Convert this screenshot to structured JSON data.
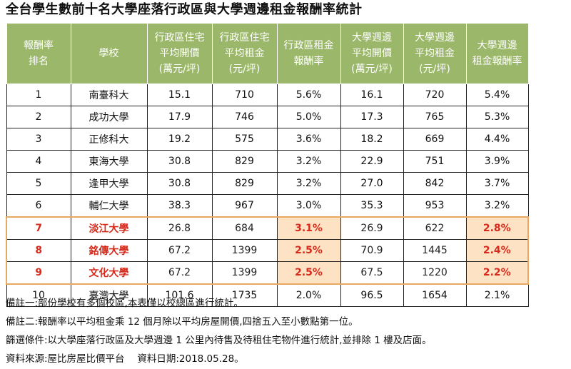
{
  "title": "全台學生數前十名大學座落行政區與大學週邊租金報酬率統計",
  "columns": [
    {
      "lines": [
        "報酬率",
        "排名"
      ]
    },
    {
      "lines": [
        "學校"
      ]
    },
    {
      "lines": [
        "行政區住宅",
        "平均開價",
        "(萬元/坪)"
      ]
    },
    {
      "lines": [
        "行政區住宅",
        "平均租金",
        "(元/坪)"
      ]
    },
    {
      "lines": [
        "行政區租金",
        "報酬率"
      ]
    },
    {
      "lines": [
        "大學週邊",
        "平均開價",
        "(萬元/坪)"
      ]
    },
    {
      "lines": [
        "大學週邊",
        "平均租金",
        "(元/坪)"
      ]
    },
    {
      "lines": [
        "大學週邊",
        "租金報酬率"
      ]
    }
  ],
  "rows": [
    {
      "rank": "1",
      "school": "南臺科大",
      "dist_price": "15.1",
      "dist_rent": "710",
      "dist_yield": "5.6%",
      "uni_price": "16.1",
      "uni_rent": "720",
      "uni_yield": "5.4%",
      "highlight": false
    },
    {
      "rank": "2",
      "school": "成功大學",
      "dist_price": "17.9",
      "dist_rent": "746",
      "dist_yield": "5.0%",
      "uni_price": "17.3",
      "uni_rent": "765",
      "uni_yield": "5.3%",
      "highlight": false
    },
    {
      "rank": "3",
      "school": "正修科大",
      "dist_price": "19.2",
      "dist_rent": "575",
      "dist_yield": "3.6%",
      "uni_price": "18.2",
      "uni_rent": "669",
      "uni_yield": "4.4%",
      "highlight": false
    },
    {
      "rank": "4",
      "school": "東海大學",
      "dist_price": "30.8",
      "dist_rent": "829",
      "dist_yield": "3.2%",
      "uni_price": "22.9",
      "uni_rent": "751",
      "uni_yield": "3.9%",
      "highlight": false
    },
    {
      "rank": "5",
      "school": "逢甲大學",
      "dist_price": "30.8",
      "dist_rent": "829",
      "dist_yield": "3.2%",
      "uni_price": "27.0",
      "uni_rent": "842",
      "uni_yield": "3.7%",
      "highlight": false
    },
    {
      "rank": "6",
      "school": "輔仁大學",
      "dist_price": "38.3",
      "dist_rent": "967",
      "dist_yield": "3.0%",
      "uni_price": "35.3",
      "uni_rent": "953",
      "uni_yield": "3.2%",
      "highlight": false
    },
    {
      "rank": "7",
      "school": "淡江大學",
      "dist_price": "26.8",
      "dist_rent": "684",
      "dist_yield": "3.1%",
      "uni_price": "26.9",
      "uni_rent": "622",
      "uni_yield": "2.8%",
      "highlight": true
    },
    {
      "rank": "8",
      "school": "銘傳大學",
      "dist_price": "67.2",
      "dist_rent": "1399",
      "dist_yield": "2.5%",
      "uni_price": "70.9",
      "uni_rent": "1445",
      "uni_yield": "2.4%",
      "highlight": true
    },
    {
      "rank": "9",
      "school": "文化大學",
      "dist_price": "67.2",
      "dist_rent": "1399",
      "dist_yield": "2.5%",
      "uni_price": "67.5",
      "uni_rent": "1220",
      "uni_yield": "2.2%",
      "highlight": true
    },
    {
      "rank": "10",
      "school": "臺灣大學",
      "dist_price": "101.6",
      "dist_rent": "1735",
      "dist_yield": "2.0%",
      "uni_price": "96.5",
      "uni_rent": "1654",
      "uni_yield": "2.1%",
      "highlight": false
    }
  ],
  "notes": [
    "備註一:部份學校有多個校區,本表僅以校總區進行統計。",
    "備註二:報酬率以平均租金乘 12 個月除以平均房屋開價,四捨五入至小數點第一位。",
    "篩選條件:以大學座落行政區及大學週邊 1 公里內待售及待租住宅物件進行統計,並排除 1 樓及店面。",
    "資料來源:屋比房屋比價平台　 資料日期:2018.05.28。"
  ],
  "colors": {
    "header_bg": "#9bb76a",
    "highlight_text": "#d62b1c",
    "highlight_cell_bg": "#fde3c4",
    "highlight_border": "#e8a862"
  }
}
